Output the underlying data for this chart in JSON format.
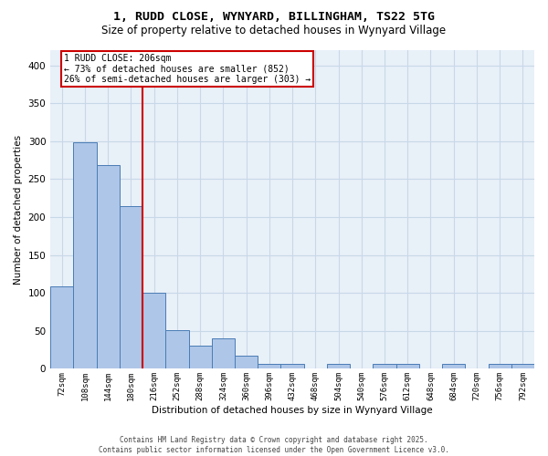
{
  "title_line1": "1, RUDD CLOSE, WYNYARD, BILLINGHAM, TS22 5TG",
  "title_line2": "Size of property relative to detached houses in Wynyard Village",
  "xlabel": "Distribution of detached houses by size in Wynyard Village",
  "ylabel": "Number of detached properties",
  "categories": [
    "72sqm",
    "108sqm",
    "144sqm",
    "180sqm",
    "216sqm",
    "252sqm",
    "288sqm",
    "324sqm",
    "360sqm",
    "396sqm",
    "432sqm",
    "468sqm",
    "504sqm",
    "540sqm",
    "576sqm",
    "612sqm",
    "648sqm",
    "684sqm",
    "720sqm",
    "756sqm",
    "792sqm"
  ],
  "values": [
    109,
    299,
    269,
    214,
    100,
    51,
    31,
    40,
    17,
    7,
    7,
    0,
    7,
    0,
    6,
    6,
    0,
    6,
    0,
    6,
    6
  ],
  "bar_color": "#aec6e8",
  "bar_edge_color": "#4a7cb5",
  "vline_x": 3.5,
  "vline_color": "#cc0000",
  "annotation_text": "1 RUDD CLOSE: 206sqm\n← 73% of detached houses are smaller (852)\n26% of semi-detached houses are larger (303) →",
  "annotation_box_color": "#cc0000",
  "annotation_bg": "#ffffff",
  "ylim": [
    0,
    420
  ],
  "yticks": [
    0,
    50,
    100,
    150,
    200,
    250,
    300,
    350,
    400
  ],
  "grid_color": "#c8d8e8",
  "bg_color": "#e8f0f8",
  "footer_line1": "Contains HM Land Registry data © Crown copyright and database right 2025.",
  "footer_line2": "Contains public sector information licensed under the Open Government Licence v3.0."
}
